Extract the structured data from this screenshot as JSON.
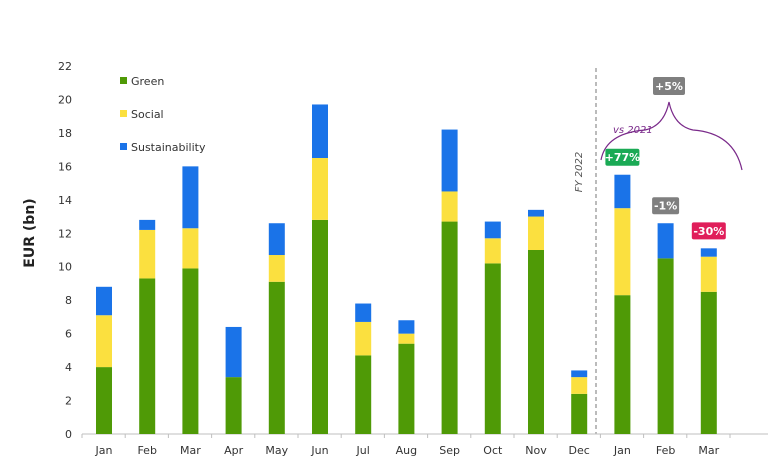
{
  "chart_data": {
    "type": "bar",
    "stacked": true,
    "ylabel": "EUR (bn)",
    "ylim": [
      0,
      22
    ],
    "yticks": [
      0,
      2,
      4,
      6,
      8,
      10,
      12,
      14,
      16,
      18,
      20,
      22
    ],
    "categories": [
      "Jan",
      "Feb",
      "Mar",
      "Apr",
      "May",
      "Jun",
      "Jul",
      "Aug",
      "Sep",
      "Oct",
      "Nov",
      "Dec",
      "Jan",
      "Feb",
      "Mar"
    ],
    "series": [
      {
        "name": "Green",
        "color": "#4f9a06",
        "values": [
          4.0,
          9.3,
          9.9,
          3.4,
          9.1,
          12.8,
          4.7,
          5.4,
          12.7,
          10.2,
          11.0,
          2.4,
          8.3,
          10.5,
          8.5
        ]
      },
      {
        "name": "Social",
        "color": "#fbe03f",
        "values": [
          3.1,
          2.9,
          2.4,
          0.0,
          1.6,
          3.7,
          2.0,
          0.6,
          1.8,
          1.5,
          2.0,
          1.0,
          5.2,
          0.0,
          2.1
        ]
      },
      {
        "name": "Sustainability",
        "color": "#1a73e8",
        "values": [
          1.7,
          0.6,
          3.7,
          3.0,
          1.9,
          3.2,
          1.1,
          0.8,
          3.7,
          1.0,
          0.4,
          0.4,
          2.0,
          2.1,
          0.5
        ]
      }
    ],
    "legend": [
      "Green",
      "Social",
      "Sustainability"
    ],
    "annotations": {
      "fy_label": "FY 2022",
      "vs_label": "vs 2021",
      "badges": [
        {
          "text": "+77%",
          "category_index": 12,
          "color": "#1aaa55"
        },
        {
          "text": "-1%",
          "category_index": 13,
          "color": "#7f7f7f"
        },
        {
          "text": "-30%",
          "category_index": 14,
          "color": "#e01e5a"
        },
        {
          "text": "+5%",
          "category_index": "group",
          "color": "#7f7f7f"
        }
      ]
    }
  }
}
